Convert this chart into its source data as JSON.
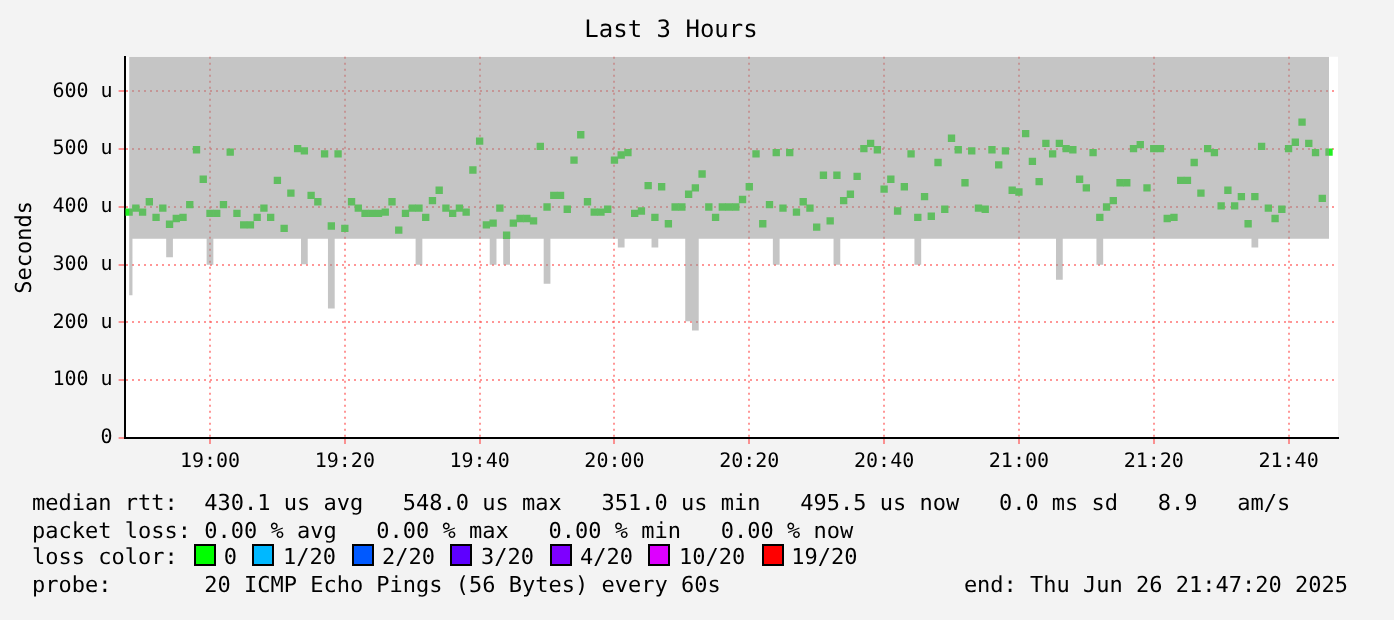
{
  "chart_data": {
    "type": "scatter",
    "title": "Last 3 Hours",
    "ylabel": "Seconds",
    "x": [
      "2025-06-26T18:48",
      "2025-06-26T18:49",
      "2025-06-26T18:50",
      "2025-06-26T18:51",
      "2025-06-26T18:52",
      "2025-06-26T18:53",
      "2025-06-26T18:54",
      "2025-06-26T18:55",
      "2025-06-26T18:56",
      "2025-06-26T18:57",
      "2025-06-26T18:58",
      "2025-06-26T18:59",
      "2025-06-26T19:00",
      "2025-06-26T19:01",
      "2025-06-26T19:02",
      "2025-06-26T19:03",
      "2025-06-26T19:04",
      "2025-06-26T19:05",
      "2025-06-26T19:06",
      "2025-06-26T19:07",
      "2025-06-26T19:08",
      "2025-06-26T19:09",
      "2025-06-26T19:10",
      "2025-06-26T19:11",
      "2025-06-26T19:12",
      "2025-06-26T19:13",
      "2025-06-26T19:14",
      "2025-06-26T19:15",
      "2025-06-26T19:16",
      "2025-06-26T19:17",
      "2025-06-26T19:18",
      "2025-06-26T19:19",
      "2025-06-26T19:20",
      "2025-06-26T19:21",
      "2025-06-26T19:22",
      "2025-06-26T19:23",
      "2025-06-26T19:24",
      "2025-06-26T19:25",
      "2025-06-26T19:26",
      "2025-06-26T19:27",
      "2025-06-26T19:28",
      "2025-06-26T19:29",
      "2025-06-26T19:30",
      "2025-06-26T19:31",
      "2025-06-26T19:32",
      "2025-06-26T19:33",
      "2025-06-26T19:34",
      "2025-06-26T19:35",
      "2025-06-26T19:36",
      "2025-06-26T19:37",
      "2025-06-26T19:38",
      "2025-06-26T19:39",
      "2025-06-26T19:40",
      "2025-06-26T19:41",
      "2025-06-26T19:42",
      "2025-06-26T19:43",
      "2025-06-26T19:44",
      "2025-06-26T19:45",
      "2025-06-26T19:46",
      "2025-06-26T19:47",
      "2025-06-26T19:48",
      "2025-06-26T19:49",
      "2025-06-26T19:50",
      "2025-06-26T19:51",
      "2025-06-26T19:52",
      "2025-06-26T19:53",
      "2025-06-26T19:54",
      "2025-06-26T19:55",
      "2025-06-26T19:56",
      "2025-06-26T19:57",
      "2025-06-26T19:58",
      "2025-06-26T19:59",
      "2025-06-26T20:00",
      "2025-06-26T20:01",
      "2025-06-26T20:02",
      "2025-06-26T20:03",
      "2025-06-26T20:04",
      "2025-06-26T20:05",
      "2025-06-26T20:06",
      "2025-06-26T20:07",
      "2025-06-26T20:08",
      "2025-06-26T20:09",
      "2025-06-26T20:10",
      "2025-06-26T20:11",
      "2025-06-26T20:12",
      "2025-06-26T20:13",
      "2025-06-26T20:14",
      "2025-06-26T20:15",
      "2025-06-26T20:16",
      "2025-06-26T20:17",
      "2025-06-26T20:18",
      "2025-06-26T20:19",
      "2025-06-26T20:20",
      "2025-06-26T20:21",
      "2025-06-26T20:22",
      "2025-06-26T20:23",
      "2025-06-26T20:24",
      "2025-06-26T20:25",
      "2025-06-26T20:26",
      "2025-06-26T20:27",
      "2025-06-26T20:28",
      "2025-06-26T20:29",
      "2025-06-26T20:30",
      "2025-06-26T20:31",
      "2025-06-26T20:32",
      "2025-06-26T20:33",
      "2025-06-26T20:34",
      "2025-06-26T20:35",
      "2025-06-26T20:36",
      "2025-06-26T20:37",
      "2025-06-26T20:38",
      "2025-06-26T20:39",
      "2025-06-26T20:40",
      "2025-06-26T20:41",
      "2025-06-26T20:42",
      "2025-06-26T20:43",
      "2025-06-26T20:44",
      "2025-06-26T20:45",
      "2025-06-26T20:46",
      "2025-06-26T20:47",
      "2025-06-26T20:48",
      "2025-06-26T20:49",
      "2025-06-26T20:50",
      "2025-06-26T20:51",
      "2025-06-26T20:52",
      "2025-06-26T20:53",
      "2025-06-26T20:54",
      "2025-06-26T20:55",
      "2025-06-26T20:56",
      "2025-06-26T20:57",
      "2025-06-26T20:58",
      "2025-06-26T20:59",
      "2025-06-26T21:00",
      "2025-06-26T21:01",
      "2025-06-26T21:02",
      "2025-06-26T21:03",
      "2025-06-26T21:04",
      "2025-06-26T21:05",
      "2025-06-26T21:06",
      "2025-06-26T21:07",
      "2025-06-26T21:08",
      "2025-06-26T21:09",
      "2025-06-26T21:10",
      "2025-06-26T21:11",
      "2025-06-26T21:12",
      "2025-06-26T21:13",
      "2025-06-26T21:14",
      "2025-06-26T21:15",
      "2025-06-26T21:16",
      "2025-06-26T21:17",
      "2025-06-26T21:18",
      "2025-06-26T21:19",
      "2025-06-26T21:20",
      "2025-06-26T21:21",
      "2025-06-26T21:22",
      "2025-06-26T21:23",
      "2025-06-26T21:24",
      "2025-06-26T21:25",
      "2025-06-26T21:26",
      "2025-06-26T21:27",
      "2025-06-26T21:28",
      "2025-06-26T21:29",
      "2025-06-26T21:30",
      "2025-06-26T21:31",
      "2025-06-26T21:32",
      "2025-06-26T21:33",
      "2025-06-26T21:34",
      "2025-06-26T21:35",
      "2025-06-26T21:36",
      "2025-06-26T21:37",
      "2025-06-26T21:38",
      "2025-06-26T21:39",
      "2025-06-26T21:40",
      "2025-06-26T21:41",
      "2025-06-26T21:42",
      "2025-06-26T21:43",
      "2025-06-26T21:44",
      "2025-06-26T21:45",
      "2025-06-26T21:46"
    ],
    "series": [
      {
        "color": "#20f020",
        "values": [
          391,
          398,
          391,
          409,
          382,
          398,
          370,
          380,
          382,
          404,
          499,
          448,
          389,
          389,
          404,
          495,
          389,
          369,
          369,
          382,
          398,
          382,
          446,
          363,
          424,
          501,
          497,
          420,
          409,
          492,
          367,
          492,
          363,
          409,
          398,
          389,
          389,
          389,
          391,
          409,
          360,
          389,
          398,
          398,
          382,
          411,
          429,
          398,
          389,
          398,
          391,
          464,
          514,
          369,
          372,
          398,
          351,
          372,
          380,
          380,
          376,
          505,
          400,
          420,
          420,
          396,
          481,
          525,
          409,
          391,
          391,
          396,
          481,
          490,
          494,
          389,
          393,
          437,
          382,
          435,
          371,
          400,
          400,
          422,
          433,
          457,
          400,
          382,
          400,
          400,
          400,
          413,
          435,
          492,
          371,
          404,
          494,
          398,
          494,
          391,
          409,
          398,
          365,
          455,
          376,
          455,
          411,
          422,
          453,
          501,
          510,
          499,
          431,
          448,
          393,
          435,
          492,
          382,
          418,
          384,
          477,
          396,
          519,
          499,
          442,
          497,
          398,
          396,
          499,
          473,
          497,
          429,
          426,
          527,
          479,
          444,
          510,
          492,
          510,
          501,
          499,
          448,
          433,
          494,
          382,
          400,
          411,
          442,
          442,
          501,
          508,
          433,
          501,
          501,
          380,
          382,
          446,
          446,
          477,
          424,
          501,
          494,
          402,
          429,
          402,
          418,
          371,
          418,
          505,
          398,
          380,
          396,
          501,
          512,
          547,
          510,
          494,
          415,
          495
        ],
        "lower": [
          247,
          345,
          345,
          345,
          345,
          345,
          313,
          345,
          345,
          345,
          345,
          345,
          300,
          345,
          345,
          345,
          345,
          345,
          345,
          345,
          345,
          345,
          345,
          345,
          345,
          345,
          301,
          345,
          345,
          345,
          224,
          345,
          345,
          345,
          345,
          345,
          345,
          345,
          345,
          345,
          345,
          345,
          345,
          300,
          345,
          345,
          345,
          345,
          345,
          345,
          345,
          345,
          345,
          345,
          300,
          345,
          300,
          345,
          345,
          345,
          345,
          345,
          267,
          345,
          345,
          345,
          345,
          345,
          345,
          345,
          345,
          345,
          345,
          330,
          345,
          345,
          345,
          345,
          330,
          345,
          345,
          345,
          345,
          202,
          186,
          345,
          345,
          345,
          345,
          345,
          345,
          345,
          345,
          345,
          345,
          345,
          300,
          345,
          345,
          345,
          345,
          345,
          345,
          345,
          345,
          300,
          345,
          345,
          345,
          345,
          345,
          345,
          345,
          345,
          345,
          345,
          345,
          300,
          345,
          345,
          345,
          345,
          345,
          345,
          345,
          345,
          345,
          345,
          345,
          345,
          345,
          345,
          345,
          345,
          345,
          345,
          345,
          345,
          274,
          345,
          345,
          345,
          345,
          345,
          300,
          345,
          345,
          345,
          345,
          345,
          345,
          345,
          345,
          345,
          345,
          345,
          345,
          345,
          345,
          345,
          345,
          345,
          345,
          345,
          345,
          345,
          345,
          330,
          345,
          345,
          345,
          345,
          345,
          345,
          345,
          345,
          345,
          345,
          345
        ],
        "upper": [
          660,
          660,
          660,
          660,
          660,
          660,
          660,
          660,
          660,
          660,
          660,
          660,
          660,
          660,
          660,
          660,
          660,
          660,
          660,
          660,
          660,
          660,
          660,
          660,
          660,
          660,
          660,
          660,
          660,
          660,
          660,
          660,
          660,
          660,
          660,
          660,
          660,
          660,
          660,
          660,
          660,
          660,
          660,
          660,
          660,
          660,
          660,
          660,
          660,
          660,
          660,
          660,
          660,
          660,
          660,
          660,
          660,
          660,
          660,
          660,
          660,
          660,
          660,
          660,
          660,
          660,
          660,
          660,
          660,
          660,
          660,
          660,
          660,
          660,
          660,
          660,
          660,
          660,
          660,
          660,
          660,
          660,
          660,
          660,
          660,
          660,
          660,
          660,
          660,
          660,
          660,
          660,
          660,
          660,
          660,
          660,
          660,
          660,
          660,
          660,
          660,
          660,
          660,
          660,
          660,
          660,
          660,
          660,
          660,
          660,
          660,
          660,
          660,
          660,
          660,
          660,
          660,
          660,
          660,
          660,
          660,
          660,
          660,
          660,
          660,
          660,
          660,
          660,
          660,
          660,
          660,
          660,
          660,
          660,
          660,
          660,
          660,
          660,
          660,
          660,
          660,
          660,
          660,
          660,
          660,
          660,
          660,
          660,
          660,
          660,
          660,
          660,
          660,
          660,
          660,
          660,
          660,
          660,
          660,
          660,
          660,
          660,
          660,
          660,
          660,
          660,
          660,
          660,
          660,
          660,
          660,
          660,
          660,
          660,
          660,
          660,
          660,
          660,
          660
        ]
      }
    ],
    "marker": "square",
    "xlim": [
      "2025-06-26T18:47:20",
      "2025-06-26T21:47:20"
    ],
    "xticks": [
      {
        "value": "2025-06-26T19:00",
        "label": "19:00"
      },
      {
        "value": "2025-06-26T19:20",
        "label": "19:20"
      },
      {
        "value": "2025-06-26T19:40",
        "label": "19:40"
      },
      {
        "value": "2025-06-26T20:00",
        "label": "20:00"
      },
      {
        "value": "2025-06-26T20:20",
        "label": "20:20"
      },
      {
        "value": "2025-06-26T20:40",
        "label": "20:40"
      },
      {
        "value": "2025-06-26T21:00",
        "label": "21:00"
      },
      {
        "value": "2025-06-26T21:20",
        "label": "21:20"
      },
      {
        "value": "2025-06-26T21:40",
        "label": "21:40"
      }
    ],
    "ylim": [
      0,
      660
    ],
    "yticks": [
      0,
      {
        "value": 100,
        "label": "100 u"
      },
      {
        "value": 200,
        "label": "200 u"
      },
      {
        "value": 300,
        "label": "300 u"
      },
      {
        "value": 400,
        "label": "400 u"
      },
      {
        "value": 500,
        "label": "500 u"
      },
      {
        "value": 600,
        "label": "600 u"
      }
    ],
    "grid": true,
    "annotations": [
      "median rtt:  430.1 us avg   548.0 us max   351.0 us min   495.5 us now   0.0 ms sd   8.9   am/s",
      "packet loss: 0.00 % avg   0.00 % max   0.00 % min   0.00 % now",
      "loss color:  0  1/20  2/20  3/20  4/20  10/20  19/20",
      "probe:       20 ICMP Echo Pings (56 Bytes) every 60s",
      "end: Thu Jun 26 21:47:20 2025"
    ]
  }
}
